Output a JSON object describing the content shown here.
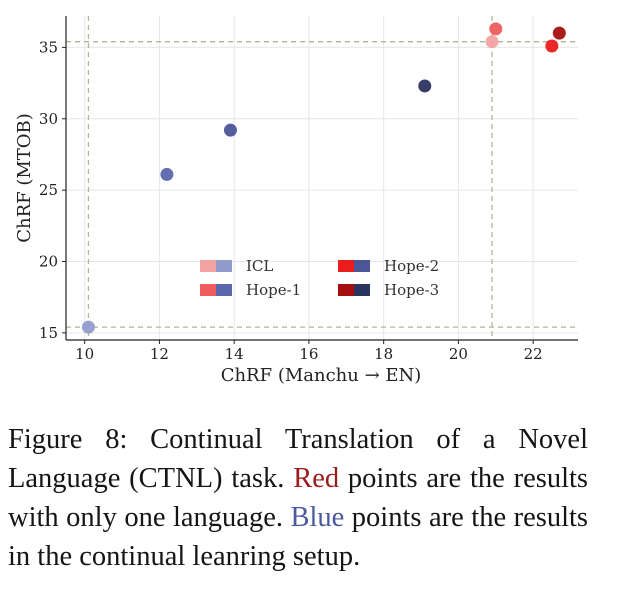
{
  "chart_data": {
    "type": "scatter",
    "xlabel": "ChRF (Manchu → EN)",
    "ylabel": "ChRF (MTOB)",
    "xlim": [
      9.5,
      23.2
    ],
    "ylim": [
      14.5,
      37.2
    ],
    "xticks": [
      10,
      12,
      14,
      16,
      18,
      20,
      22
    ],
    "yticks": [
      15,
      20,
      25,
      30,
      35
    ],
    "grid": true,
    "legend_position": "center-bottom",
    "reference_lines": {
      "x": 20.9,
      "y": 35.4,
      "y_low": 15.4,
      "x_low": 10.1
    },
    "series": [
      {
        "name": "ICL",
        "red_color": "#f4a3a3",
        "blue_color": "#929ccc",
        "points": [
          {
            "x": 20.9,
            "y": 35.4,
            "group": "red"
          },
          {
            "x": 10.1,
            "y": 15.4,
            "group": "blue"
          }
        ]
      },
      {
        "name": "Hope-1",
        "red_color": "#ee5c5c",
        "blue_color": "#5b67ad",
        "points": [
          {
            "x": 21.0,
            "y": 36.3,
            "group": "red"
          },
          {
            "x": 12.2,
            "y": 26.1,
            "group": "blue"
          }
        ]
      },
      {
        "name": "Hope-2",
        "red_color": "#ea1c1c",
        "blue_color": "#4b5598",
        "points": [
          {
            "x": 22.5,
            "y": 35.1,
            "group": "red"
          },
          {
            "x": 13.9,
            "y": 29.2,
            "group": "blue"
          }
        ]
      },
      {
        "name": "Hope-3",
        "red_color": "#a50f0f",
        "blue_color": "#2b3360",
        "points": [
          {
            "x": 22.7,
            "y": 36.0,
            "group": "red"
          },
          {
            "x": 19.1,
            "y": 32.3,
            "group": "blue"
          }
        ]
      }
    ]
  },
  "caption": {
    "prefix": "Figure 8:  Continual Translation of a Novel Language (CTNL) task.  ",
    "red_word": "Red",
    "middle": " points are the results with only one language. ",
    "blue_word": "Blue",
    "suffix": " points are the results in the continual leanring setup."
  }
}
